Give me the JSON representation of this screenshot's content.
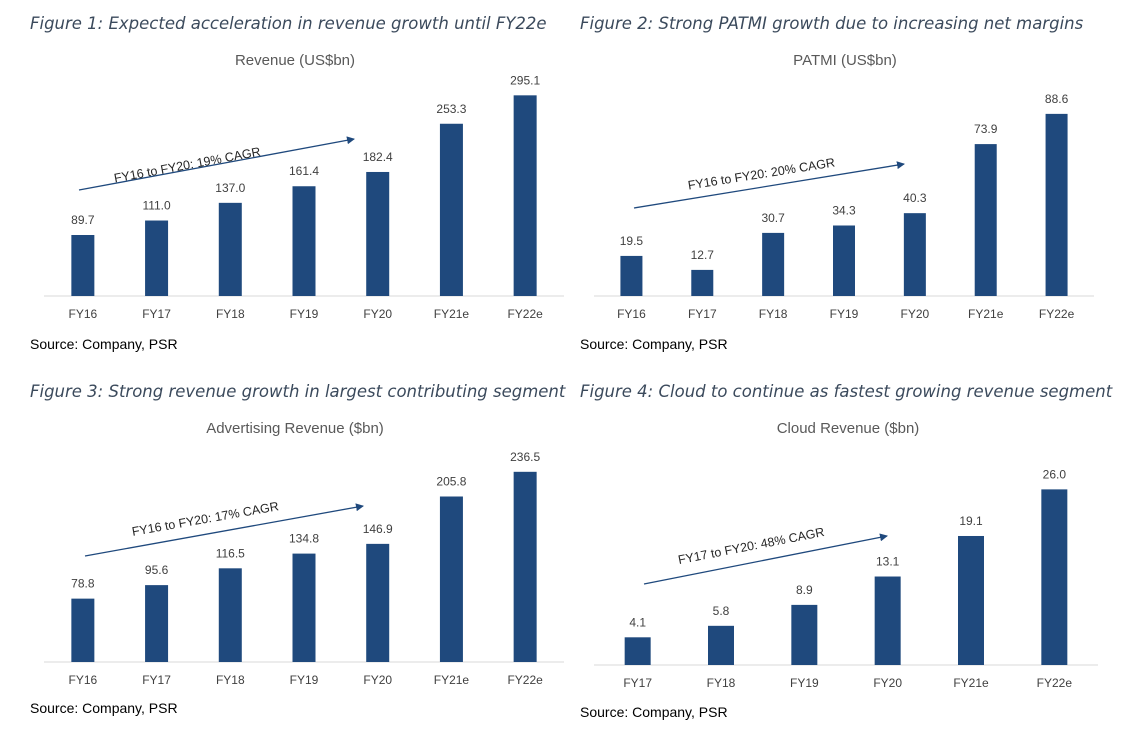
{
  "figures": [
    {
      "caption": "Figure 1: Expected acceleration in revenue growth until FY22e",
      "source": "Source: Company, PSR",
      "chart_data": {
        "type": "bar",
        "title": "Revenue (US$bn)",
        "categories": [
          "FY16",
          "FY17",
          "FY18",
          "FY19",
          "FY20",
          "FY21e",
          "FY22e"
        ],
        "values": [
          89.7,
          111.0,
          137.0,
          161.4,
          182.4,
          253.3,
          295.1
        ],
        "value_labels": [
          "89.7",
          "111.0",
          "137.0",
          "161.4",
          "182.4",
          "253.3",
          "295.1"
        ],
        "ylim": [
          0,
          300
        ],
        "grid": false,
        "bar_color": "#1f497d",
        "annotation": {
          "text": "FY16 to FY20: 19% CAGR",
          "from_category": "FY16",
          "to_category": "FY20"
        }
      }
    },
    {
      "caption": "Figure 2: Strong PATMI growth due to increasing net margins",
      "source": "Source: Company, PSR",
      "chart_data": {
        "type": "bar",
        "title": "PATMI (US$bn)",
        "categories": [
          "FY16",
          "FY17",
          "FY18",
          "FY19",
          "FY20",
          "FY21e",
          "FY22e"
        ],
        "values": [
          19.5,
          12.7,
          30.7,
          34.3,
          40.3,
          73.9,
          88.6
        ],
        "value_labels": [
          "19.5",
          "12.7",
          "30.7",
          "34.3",
          "40.3",
          "73.9",
          "88.6"
        ],
        "ylim": [
          0,
          90
        ],
        "grid": false,
        "bar_color": "#1f497d",
        "annotation": {
          "text": "FY16 to FY20: 20% CAGR",
          "from_category": "FY16",
          "to_category": "FY20"
        }
      }
    },
    {
      "caption": "Figure 3: Strong revenue growth in largest contributing segment",
      "source": "Source: Company, PSR",
      "chart_data": {
        "type": "bar",
        "title": "Advertising Revenue ($bn)",
        "categories": [
          "FY16",
          "FY17",
          "FY18",
          "FY19",
          "FY20",
          "FY21e",
          "FY22e"
        ],
        "values": [
          78.8,
          95.6,
          116.5,
          134.8,
          146.9,
          205.8,
          236.5
        ],
        "value_labels": [
          "78.8",
          "95.6",
          "116.5",
          "134.8",
          "146.9",
          "205.8",
          "236.5"
        ],
        "ylim": [
          0,
          240
        ],
        "grid": false,
        "bar_color": "#1f497d",
        "annotation": {
          "text": "FY16 to FY20: 17% CAGR",
          "from_category": "FY16",
          "to_category": "FY20"
        }
      }
    },
    {
      "caption": "Figure 4: Cloud to continue as fastest growing revenue segment",
      "source": "Source: Company, PSR",
      "chart_data": {
        "type": "bar",
        "title": "Cloud Revenue ($bn)",
        "categories": [
          "FY17",
          "FY18",
          "FY19",
          "FY20",
          "FY21e",
          "FY22e"
        ],
        "values": [
          4.1,
          5.8,
          8.9,
          13.1,
          19.1,
          26.0
        ],
        "value_labels": [
          "4.1",
          "5.8",
          "8.9",
          "13.1",
          "19.1",
          "26.0"
        ],
        "ylim": [
          0,
          26.5
        ],
        "grid": false,
        "bar_color": "#1f497d",
        "annotation": {
          "text": "FY17 to FY20: 48% CAGR",
          "from_category": "FY17",
          "to_category": "FY20"
        }
      }
    }
  ]
}
